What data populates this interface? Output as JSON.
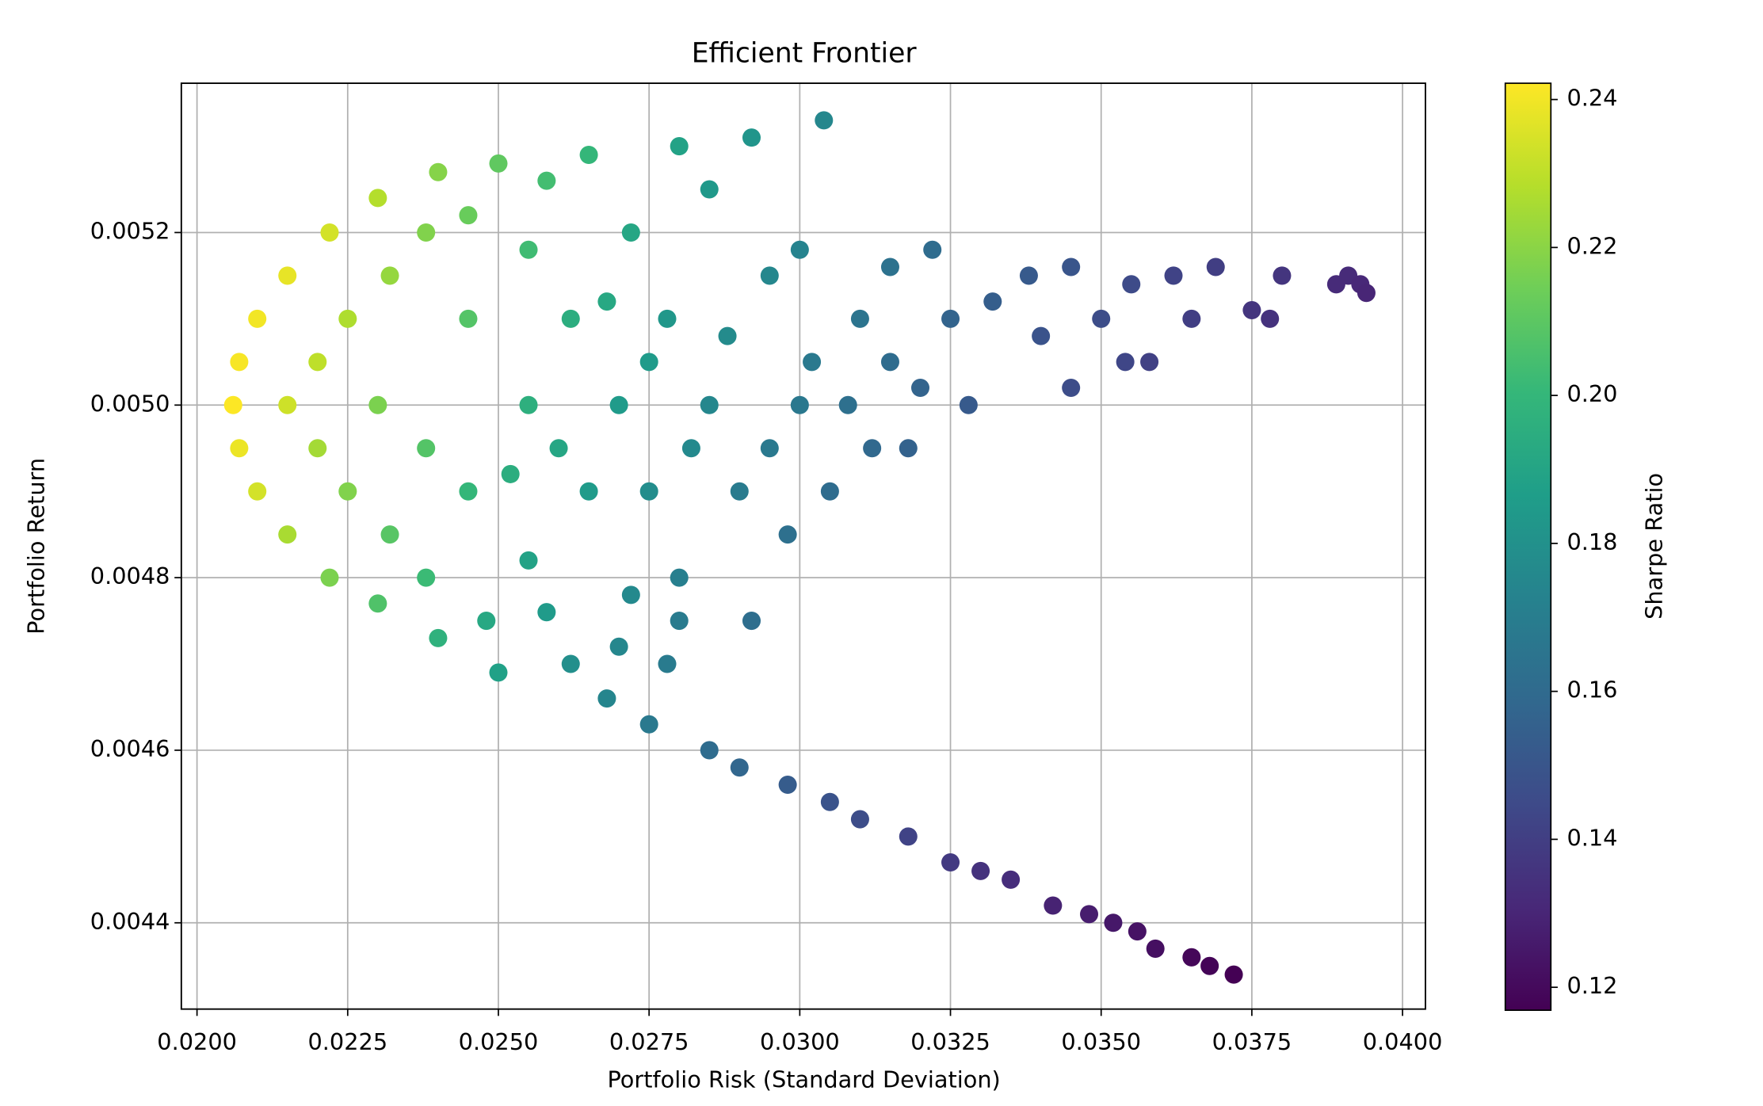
{
  "chart_data": {
    "type": "scatter",
    "title": "Efficient Frontier",
    "x_label": "Portfolio Risk (Standard Deviation)",
    "y_label": "Portfolio Return",
    "colorbar_label": "Sharpe Ratio",
    "colormap": "viridis",
    "grid": true,
    "xlim": [
      0.01974,
      0.04038
    ],
    "ylim": [
      0.0043,
      0.005373
    ],
    "clim": [
      0.1169,
      0.2422
    ],
    "xticks": [
      {
        "value": 0.02,
        "label": "0.0200"
      },
      {
        "value": 0.0225,
        "label": "0.0225"
      },
      {
        "value": 0.025,
        "label": "0.0250"
      },
      {
        "value": 0.0275,
        "label": "0.0275"
      },
      {
        "value": 0.03,
        "label": "0.0300"
      },
      {
        "value": 0.0325,
        "label": "0.0325"
      },
      {
        "value": 0.035,
        "label": "0.0350"
      },
      {
        "value": 0.0375,
        "label": "0.0375"
      },
      {
        "value": 0.04,
        "label": "0.0400"
      }
    ],
    "yticks": [
      {
        "value": 0.0044,
        "label": "0.0044"
      },
      {
        "value": 0.0046,
        "label": "0.0046"
      },
      {
        "value": 0.0048,
        "label": "0.0048"
      },
      {
        "value": 0.005,
        "label": "0.0050"
      },
      {
        "value": 0.0052,
        "label": "0.0052"
      }
    ],
    "cticks": [
      0.12,
      0.14,
      0.16,
      0.18,
      {
        "value": 0.2,
        "label": "0.20"
      },
      0.22,
      0.24
    ],
    "x": [
      0.0206,
      0.0207,
      0.0207,
      0.021,
      0.021,
      0.0215,
      0.0215,
      0.0222,
      0.0222,
      0.023,
      0.023,
      0.024,
      0.024,
      0.025,
      0.025,
      0.0215,
      0.022,
      0.022,
      0.0225,
      0.0225,
      0.023,
      0.0232,
      0.0232,
      0.0238,
      0.0238,
      0.0238,
      0.0245,
      0.0245,
      0.0245,
      0.0248,
      0.0255,
      0.0255,
      0.0255,
      0.0258,
      0.0262,
      0.0262,
      0.0265,
      0.0265,
      0.0268,
      0.027,
      0.0272,
      0.0272,
      0.0275,
      0.0275,
      0.0278,
      0.0278,
      0.028,
      0.028,
      0.0285,
      0.0285,
      0.0285,
      0.029,
      0.029,
      0.0292,
      0.0295,
      0.0298,
      0.03,
      0.03,
      0.0304,
      0.0305,
      0.0305,
      0.031,
      0.031,
      0.0312,
      0.0315,
      0.0318,
      0.032,
      0.0322,
      0.0325,
      0.0325,
      0.0328,
      0.033,
      0.0332,
      0.0335,
      0.0338,
      0.034,
      0.0342,
      0.0345,
      0.0345,
      0.0348,
      0.035,
      0.0352,
      0.0354,
      0.0355,
      0.0356,
      0.0358,
      0.0359,
      0.0362,
      0.0365,
      0.0365,
      0.0368,
      0.0369,
      0.0372,
      0.0375,
      0.0378,
      0.038,
      0.0389,
      0.0391,
      0.0393,
      0.0394,
      0.026,
      0.0268,
      0.0275,
      0.0282,
      0.0288,
      0.0295,
      0.0302,
      0.0308,
      0.0315,
      0.0318,
      0.0298,
      0.0292,
      0.028,
      0.027,
      0.0252,
      0.0258
    ],
    "values": [
      0.005,
      0.00505,
      0.00495,
      0.0051,
      0.0049,
      0.00515,
      0.00485,
      0.0052,
      0.0048,
      0.00524,
      0.00477,
      0.00527,
      0.00473,
      0.00528,
      0.00469,
      0.005,
      0.00505,
      0.00495,
      0.0051,
      0.0049,
      0.005,
      0.00515,
      0.00485,
      0.0052,
      0.00495,
      0.0048,
      0.0051,
      0.0049,
      0.00522,
      0.00475,
      0.005,
      0.00518,
      0.00482,
      0.00526,
      0.0047,
      0.0051,
      0.0049,
      0.00529,
      0.00466,
      0.005,
      0.0052,
      0.00478,
      0.00463,
      0.0049,
      0.0051,
      0.0047,
      0.0053,
      0.0048,
      0.0046,
      0.005,
      0.00525,
      0.0049,
      0.00458,
      0.00531,
      0.00515,
      0.00456,
      0.005,
      0.00518,
      0.00533,
      0.00454,
      0.0049,
      0.0051,
      0.00452,
      0.00495,
      0.00516,
      0.0045,
      0.00502,
      0.00518,
      0.00447,
      0.0051,
      0.005,
      0.00446,
      0.00512,
      0.00445,
      0.00515,
      0.00508,
      0.00442,
      0.00502,
      0.00516,
      0.00441,
      0.0051,
      0.0044,
      0.00505,
      0.00514,
      0.00439,
      0.00505,
      0.00437,
      0.00515,
      0.00436,
      0.0051,
      0.00435,
      0.00516,
      0.00434,
      0.00511,
      0.0051,
      0.00515,
      0.00514,
      0.00515,
      0.00514,
      0.00513,
      0.00495,
      0.00512,
      0.00505,
      0.00495,
      0.00508,
      0.00495,
      0.00505,
      0.005,
      0.00505,
      0.00495,
      0.00485,
      0.00475,
      0.00475,
      0.00472,
      0.00492,
      0.00476
    ],
    "sharpe": [
      0.242,
      0.241,
      0.239,
      0.24,
      0.234,
      0.238,
      0.226,
      0.234,
      0.217,
      0.228,
      0.207,
      0.219,
      0.197,
      0.211,
      0.188,
      0.233,
      0.23,
      0.225,
      0.227,
      0.218,
      0.217,
      0.222,
      0.209,
      0.218,
      0.208,
      0.202,
      0.208,
      0.2,
      0.213,
      0.192,
      0.196,
      0.203,
      0.189,
      0.204,
      0.179,
      0.195,
      0.185,
      0.2,
      0.174,
      0.185,
      0.191,
      0.176,
      0.168,
      0.178,
      0.183,
      0.169,
      0.189,
      0.171,
      0.161,
      0.175,
      0.184,
      0.169,
      0.158,
      0.182,
      0.175,
      0.153,
      0.167,
      0.173,
      0.175,
      0.149,
      0.161,
      0.165,
      0.146,
      0.159,
      0.164,
      0.142,
      0.157,
      0.161,
      0.138,
      0.157,
      0.152,
      0.135,
      0.154,
      0.133,
      0.152,
      0.149,
      0.129,
      0.146,
      0.15,
      0.127,
      0.146,
      0.125,
      0.143,
      0.145,
      0.123,
      0.141,
      0.122,
      0.142,
      0.119,
      0.14,
      0.118,
      0.14,
      0.117,
      0.136,
      0.135,
      0.136,
      0.132,
      0.132,
      0.131,
      0.13,
      0.191,
      0.192,
      0.185,
      0.176,
      0.177,
      0.168,
      0.168,
      0.163,
      0.161,
      0.156,
      0.163,
      0.162,
      0.169,
      0.175,
      0.195,
      0.185
    ]
  }
}
